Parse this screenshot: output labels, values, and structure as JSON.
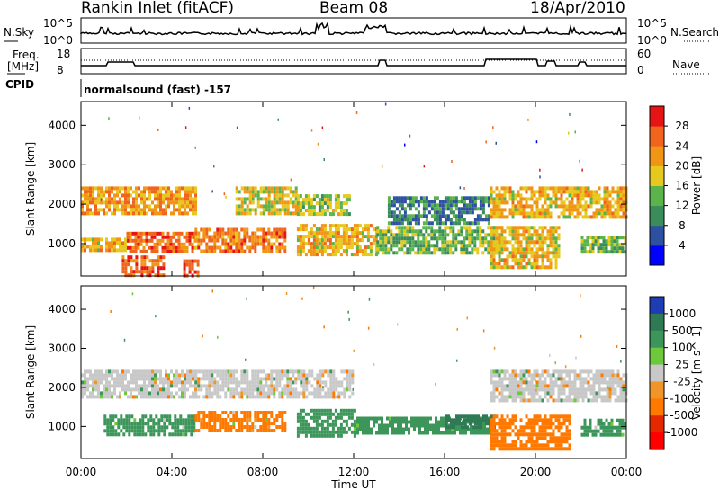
{
  "header": {
    "title": "Rankin Inlet (fitACF)",
    "beam": "Beam 08",
    "date": "18/Apr/2010"
  },
  "sky_panel": {
    "left_label": "N.Sky",
    "left_ticks": [
      "10^5",
      "10^0"
    ],
    "right_label": "N.Search",
    "right_ticks": [
      "10^5",
      "10^0"
    ]
  },
  "freq_panel": {
    "left_label_1": "Freq.",
    "left_label_2": "[MHz]",
    "left_ticks": [
      "18",
      "8"
    ],
    "right_label": "Nave",
    "right_ticks": [
      "60",
      "0"
    ]
  },
  "cpid_panel": {
    "label": "CPID",
    "text": "normalsound (fast) -157"
  },
  "colors": {
    "power_scale": [
      "#0000ff",
      "#2d50a0",
      "#3a8c5a",
      "#5ab44b",
      "#e6c81e",
      "#f09614",
      "#f0641e",
      "#e61414"
    ],
    "velocity_scale": [
      "#1e3cb4",
      "#2f7a55",
      "#3c965a",
      "#6ec83c",
      "#c8c8c8",
      "#f09628",
      "#ff7800",
      "#e62800",
      "#ff0000"
    ]
  },
  "chart_data": [
    {
      "type": "heatmap",
      "title": "Power",
      "xlabel": "",
      "ylabel": "Slant Range [km]",
      "x_ticks": [
        "00:00",
        "04:00",
        "08:00",
        "12:00",
        "16:00",
        "20:00",
        "00:00"
      ],
      "y_ticks": [
        "1000",
        "2000",
        "3000",
        "4000"
      ],
      "xlim": [
        0,
        24
      ],
      "ylim": [
        180,
        4600
      ],
      "colorbar_label": "Power [dB]",
      "colorbar_ticks": [
        "4",
        "8",
        "12",
        "16",
        "20",
        "24",
        "28"
      ],
      "colorbar_range": [
        0,
        32
      ],
      "bands": [
        {
          "x": [
            0.0,
            5.0
          ],
          "range": [
            1800,
            2450
          ],
          "value": 22
        },
        {
          "x": [
            2.0,
            5.0
          ],
          "range": [
            780,
            1300
          ],
          "value": 26
        },
        {
          "x": [
            0.0,
            2.0
          ],
          "range": [
            800,
            1150
          ],
          "value": 20
        },
        {
          "x": [
            5.0,
            9.0
          ],
          "range": [
            850,
            1400
          ],
          "value": 24
        },
        {
          "x": [
            6.8,
            9.5
          ],
          "range": [
            1750,
            2450
          ],
          "value": 18
        },
        {
          "x": [
            9.5,
            13.0
          ],
          "range": [
            750,
            1500
          ],
          "value": 20
        },
        {
          "x": [
            9.5,
            11.8
          ],
          "range": [
            1750,
            2250
          ],
          "value": 16
        },
        {
          "x": [
            13.0,
            18.5
          ],
          "range": [
            780,
            1450
          ],
          "value": 14
        },
        {
          "x": [
            13.5,
            18.0
          ],
          "range": [
            1500,
            2200
          ],
          "value": 9
        },
        {
          "x": [
            18.0,
            21.0
          ],
          "range": [
            400,
            1450
          ],
          "value": 20
        },
        {
          "x": [
            18.0,
            24.0
          ],
          "range": [
            1700,
            2450
          ],
          "value": 20
        },
        {
          "x": [
            22.0,
            24.0
          ],
          "range": [
            750,
            1200
          ],
          "value": 14
        },
        {
          "x": [
            1.8,
            3.6
          ],
          "range": [
            180,
            700
          ],
          "value": 26
        },
        {
          "x": [
            4.5,
            5.1
          ],
          "range": [
            180,
            600
          ],
          "value": 28
        }
      ]
    },
    {
      "type": "heatmap",
      "title": "Velocity",
      "xlabel": "Time UT",
      "ylabel": "Slant Range [km]",
      "x_ticks": [
        "00:00",
        "04:00",
        "08:00",
        "12:00",
        "16:00",
        "20:00",
        "00:00"
      ],
      "y_ticks": [
        "1000",
        "2000",
        "3000",
        "4000"
      ],
      "xlim": [
        0,
        24
      ],
      "ylim": [
        180,
        4600
      ],
      "colorbar_label": "Velocity [m s^-1]",
      "colorbar_ticks": [
        "1000",
        "500",
        "100",
        "25",
        "-25",
        "-100",
        "-500",
        "-1000"
      ],
      "bands": [
        {
          "x": [
            0.0,
            5.0
          ],
          "range": [
            1800,
            2450
          ],
          "value": 0
        },
        {
          "x": [
            5.0,
            12.0
          ],
          "range": [
            1800,
            2450
          ],
          "value": 0
        },
        {
          "x": [
            18.0,
            24.0
          ],
          "range": [
            1700,
            2450
          ],
          "value": 0
        },
        {
          "x": [
            1.0,
            5.0
          ],
          "range": [
            780,
            1300
          ],
          "value": 200
        },
        {
          "x": [
            5.0,
            9.0
          ],
          "range": [
            850,
            1400
          ],
          "value": -150
        },
        {
          "x": [
            9.5,
            12.0
          ],
          "range": [
            750,
            1450
          ],
          "value": 300
        },
        {
          "x": [
            12.0,
            18.0
          ],
          "range": [
            800,
            1250
          ],
          "value": 200
        },
        {
          "x": [
            16.0,
            18.2
          ],
          "range": [
            950,
            1300
          ],
          "value": 800
        },
        {
          "x": [
            18.0,
            21.5
          ],
          "range": [
            400,
            1300
          ],
          "value": -300
        },
        {
          "x": [
            22.0,
            24.0
          ],
          "range": [
            800,
            1200
          ],
          "value": 150
        }
      ]
    }
  ]
}
